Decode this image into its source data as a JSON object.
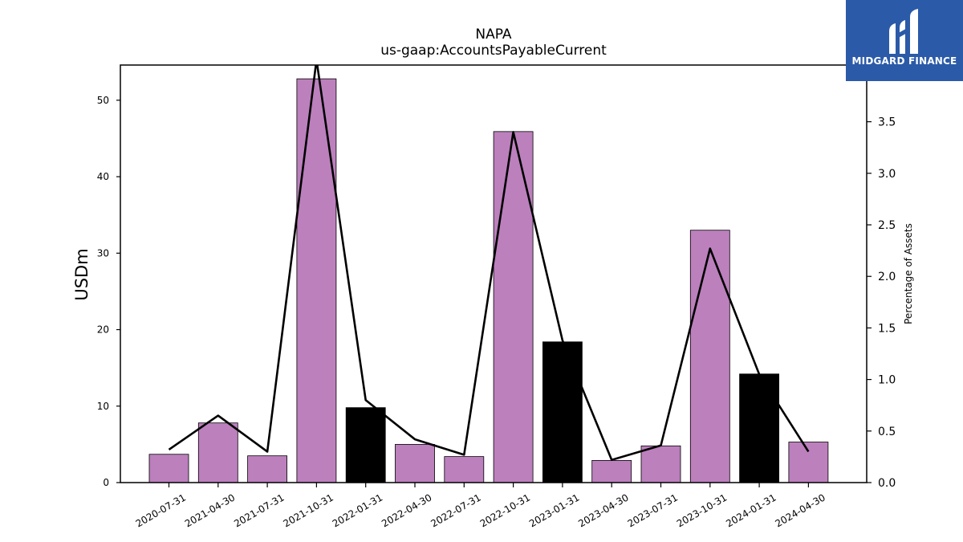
{
  "chart_data": {
    "type": "bar",
    "title": "NAPA",
    "subtitle": "us-gaap:AccountsPayableCurrent",
    "ylabel": "USDm",
    "y2label": "Percentage of Assets",
    "categories": [
      "2020-07-31",
      "2021-04-30",
      "2021-07-31",
      "2021-10-31",
      "2022-01-31",
      "2022-04-30",
      "2022-07-31",
      "2022-10-31",
      "2023-01-31",
      "2023-04-30",
      "2023-07-31",
      "2023-10-31",
      "2024-01-31",
      "2024-04-30"
    ],
    "values": [
      3.7,
      7.8,
      3.5,
      52.8,
      9.8,
      5.0,
      3.4,
      45.9,
      18.4,
      2.9,
      4.8,
      33.0,
      14.2,
      5.3
    ],
    "bar_colors": [
      "#bc80bd",
      "#bc80bd",
      "#bc80bd",
      "#bc80bd",
      "#000000",
      "#bc80bd",
      "#bc80bd",
      "#bc80bd",
      "#000000",
      "#bc80bd",
      "#bc80bd",
      "#bc80bd",
      "#000000",
      "#bc80bd"
    ],
    "line_values": [
      0.32,
      0.65,
      0.3,
      4.1,
      0.8,
      0.42,
      0.27,
      3.4,
      1.38,
      0.22,
      0.36,
      2.27,
      1.05,
      0.3
    ],
    "line_color": "#000000",
    "ylim": [
      0,
      54.6
    ],
    "y2lim": [
      0,
      4.05
    ],
    "yticks": [
      0,
      10,
      20,
      30,
      40,
      50
    ],
    "y2ticks": [
      "0.0",
      "0.5",
      "1.0",
      "1.5",
      "2.0",
      "2.5",
      "3.0",
      "3.5"
    ],
    "grid": false
  },
  "logo": {
    "text": "MIDGARD FINANCE",
    "bg_color": "#2b5aa8"
  }
}
